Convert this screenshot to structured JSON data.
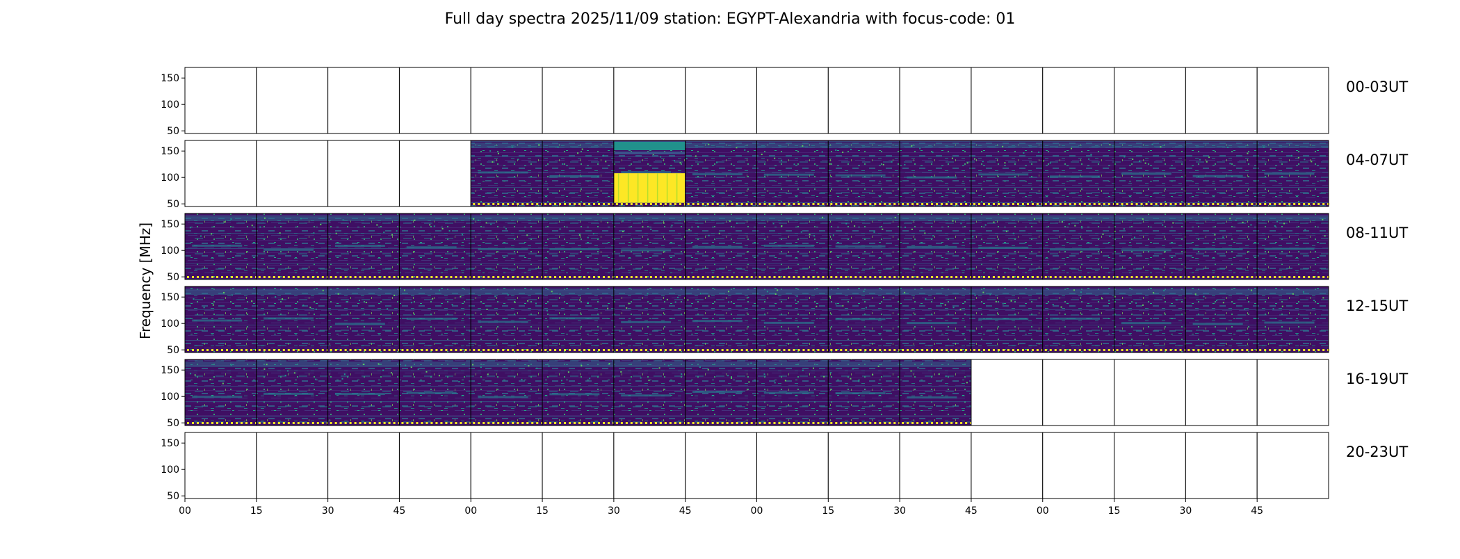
{
  "chart_data": {
    "type": "heatmap",
    "title": "Full day spectra 2025/11/09 station: EGYPT-Alexandria with focus-code: 01",
    "ylabel": "Frequency [MHz]",
    "ylim": [
      45,
      170
    ],
    "y_ticks": [
      "150",
      "100",
      "50"
    ],
    "y_tick_values": [
      150,
      100,
      50
    ],
    "x_tick_labels": [
      "00",
      "15",
      "30",
      "45",
      "00",
      "15",
      "30",
      "45",
      "00",
      "15",
      "30",
      "45",
      "00",
      "15",
      "30",
      "45"
    ],
    "colormap": [
      "#440154",
      "#3b528b",
      "#21918c",
      "#5ec962",
      "#fde725"
    ],
    "rows": [
      {
        "label": "00-03UT",
        "panels": [
          0,
          0,
          0,
          0,
          0,
          0,
          0,
          0,
          0,
          0,
          0,
          0,
          0,
          0,
          0,
          0
        ]
      },
      {
        "label": "04-07UT",
        "panels": [
          0,
          0,
          0,
          0,
          1,
          1,
          2,
          1,
          1,
          1,
          1,
          1,
          1,
          1,
          1,
          1
        ]
      },
      {
        "label": "08-11UT",
        "panels": [
          1,
          1,
          1,
          1,
          1,
          1,
          1,
          1,
          1,
          1,
          1,
          1,
          1,
          1,
          1,
          1
        ]
      },
      {
        "label": "12-15UT",
        "panels": [
          1,
          1,
          1,
          1,
          1,
          1,
          1,
          1,
          1,
          1,
          1,
          1,
          1,
          1,
          1,
          1
        ]
      },
      {
        "label": "16-19UT",
        "panels": [
          1,
          1,
          1,
          1,
          1,
          1,
          1,
          1,
          1,
          1,
          1,
          0,
          0,
          0,
          0,
          0
        ]
      },
      {
        "label": "20-23UT",
        "panels": [
          0,
          0,
          0,
          0,
          0,
          0,
          0,
          0,
          0,
          0,
          0,
          0,
          0,
          0,
          0,
          0
        ]
      }
    ]
  }
}
